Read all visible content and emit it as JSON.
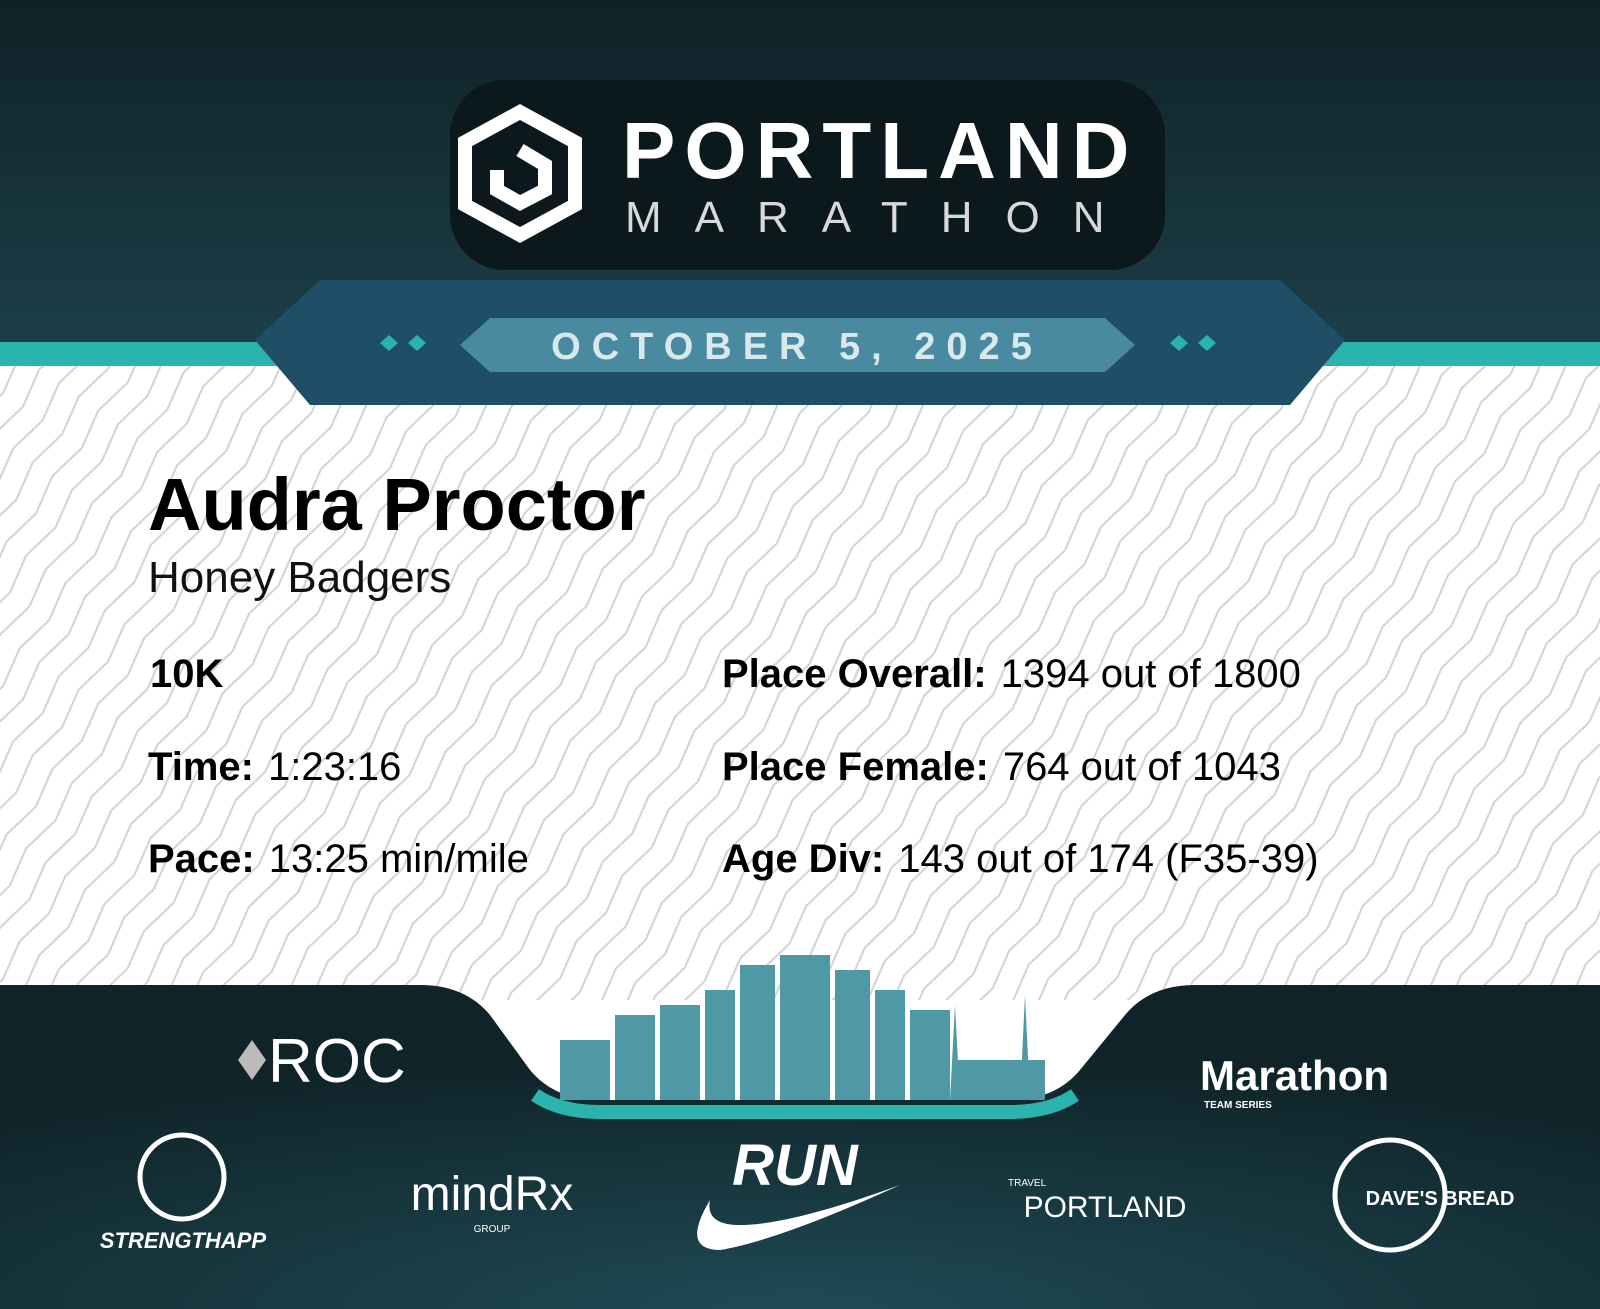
{
  "header": {
    "logo_title": "PORTLAND",
    "logo_subtitle": "MARATHON",
    "date": "OCTOBER 5, 2025"
  },
  "runner": {
    "name": "Audra Proctor",
    "team": "Honey Badgers",
    "event": "10K"
  },
  "stats": [
    {
      "label": "Time:",
      "value": "1:23:16"
    },
    {
      "label": "Pace:",
      "value": "13:25 min/mile"
    },
    {
      "label": "Place Overall:",
      "value": "1394 out of 1800"
    },
    {
      "label": "Place Female:",
      "value": "764 out of 1043"
    },
    {
      "label": "Age Div:",
      "value": "143 out of 174 (F35-39)"
    }
  ],
  "sponsors": [
    {
      "name": "ROC"
    },
    {
      "name": "Marathon",
      "tagline": "TEAM SERIES"
    },
    {
      "name": "STRENGTHAPP"
    },
    {
      "name": "mindRx",
      "tagline": "GROUP"
    },
    {
      "name": "RUN"
    },
    {
      "name": "PORTLAND",
      "tagline": "TRAVEL"
    },
    {
      "name": "DAVE'S BREAD"
    }
  ]
}
